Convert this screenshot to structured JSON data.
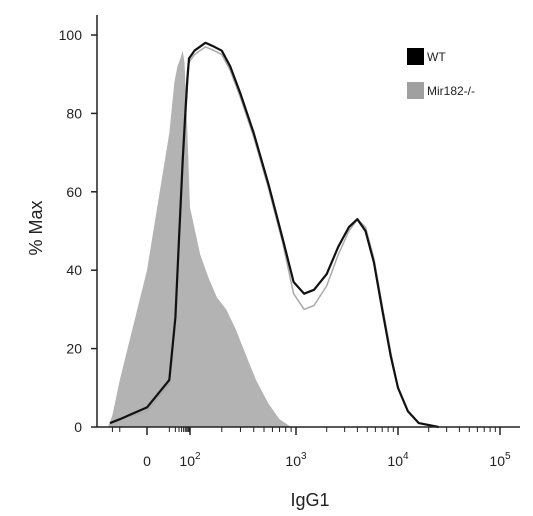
{
  "chart_data": {
    "type": "area",
    "xlabel": "IgG1",
    "ylabel": "% Max",
    "x_scale": "biexponential",
    "xlim": [
      -30,
      160000
    ],
    "ylim": [
      0,
      100
    ],
    "y_ticks": [
      0,
      20,
      40,
      60,
      80,
      100
    ],
    "x_ticks": [
      {
        "value": 0,
        "label": "0"
      },
      {
        "value": 100,
        "base": "10",
        "exp": "2"
      },
      {
        "value": 1000,
        "base": "10",
        "exp": "3"
      },
      {
        "value": 10000,
        "base": "10",
        "exp": "4"
      },
      {
        "value": 100000,
        "base": "10",
        "exp": "5"
      }
    ],
    "legend": {
      "placement": "top-right"
    },
    "series": [
      {
        "name": "WT",
        "color": "#111111",
        "style": "line",
        "points": [
          [
            -25,
            1
          ],
          [
            -10,
            2
          ],
          [
            0,
            5
          ],
          [
            10,
            12
          ],
          [
            20,
            28
          ],
          [
            30,
            48
          ],
          [
            45,
            68
          ],
          [
            60,
            80
          ],
          [
            75,
            89
          ],
          [
            90,
            94
          ],
          [
            110,
            96
          ],
          [
            140,
            98
          ],
          [
            170,
            97
          ],
          [
            200,
            96
          ],
          [
            240,
            92
          ],
          [
            300,
            85
          ],
          [
            400,
            75
          ],
          [
            550,
            62
          ],
          [
            750,
            48
          ],
          [
            950,
            37
          ],
          [
            1200,
            34
          ],
          [
            1500,
            35
          ],
          [
            2000,
            39
          ],
          [
            2600,
            46
          ],
          [
            3300,
            51
          ],
          [
            4000,
            53
          ],
          [
            4800,
            50
          ],
          [
            5800,
            42
          ],
          [
            7000,
            30
          ],
          [
            8500,
            18
          ],
          [
            10000,
            10
          ],
          [
            12500,
            4
          ],
          [
            16000,
            1
          ],
          [
            25000,
            0
          ]
        ]
      },
      {
        "name": "",
        "color": "#a9a9a9",
        "style": "line",
        "points": [
          [
            -25,
            1
          ],
          [
            -10,
            2
          ],
          [
            0,
            4
          ],
          [
            10,
            11
          ],
          [
            20,
            26
          ],
          [
            30,
            46
          ],
          [
            45,
            66
          ],
          [
            60,
            78
          ],
          [
            75,
            87
          ],
          [
            90,
            93
          ],
          [
            110,
            95
          ],
          [
            140,
            97
          ],
          [
            170,
            96
          ],
          [
            200,
            95
          ],
          [
            240,
            91
          ],
          [
            300,
            84
          ],
          [
            400,
            74
          ],
          [
            550,
            61
          ],
          [
            750,
            47
          ],
          [
            950,
            34
          ],
          [
            1200,
            30
          ],
          [
            1500,
            31
          ],
          [
            2000,
            36
          ],
          [
            2600,
            44
          ],
          [
            3300,
            50
          ],
          [
            4000,
            53
          ],
          [
            4800,
            51
          ],
          [
            5800,
            43
          ],
          [
            7000,
            31
          ],
          [
            8500,
            19
          ],
          [
            10000,
            10
          ],
          [
            12500,
            4
          ],
          [
            16000,
            1
          ],
          [
            25000,
            0
          ]
        ]
      },
      {
        "name": "Mir182-/-",
        "color": "#b3b3b3",
        "style": "filled",
        "points": [
          [
            -30,
            0
          ],
          [
            -20,
            3
          ],
          [
            -10,
            12
          ],
          [
            0,
            40
          ],
          [
            10,
            75
          ],
          [
            18,
            88
          ],
          [
            25,
            92
          ],
          [
            35,
            94
          ],
          [
            45,
            96
          ],
          [
            55,
            93
          ],
          [
            70,
            80
          ],
          [
            85,
            67
          ],
          [
            100,
            56
          ],
          [
            125,
            44
          ],
          [
            150,
            38
          ],
          [
            180,
            33
          ],
          [
            220,
            30
          ],
          [
            270,
            25
          ],
          [
            330,
            19
          ],
          [
            420,
            12
          ],
          [
            550,
            6
          ],
          [
            700,
            2
          ],
          [
            900,
            0
          ]
        ]
      }
    ]
  }
}
